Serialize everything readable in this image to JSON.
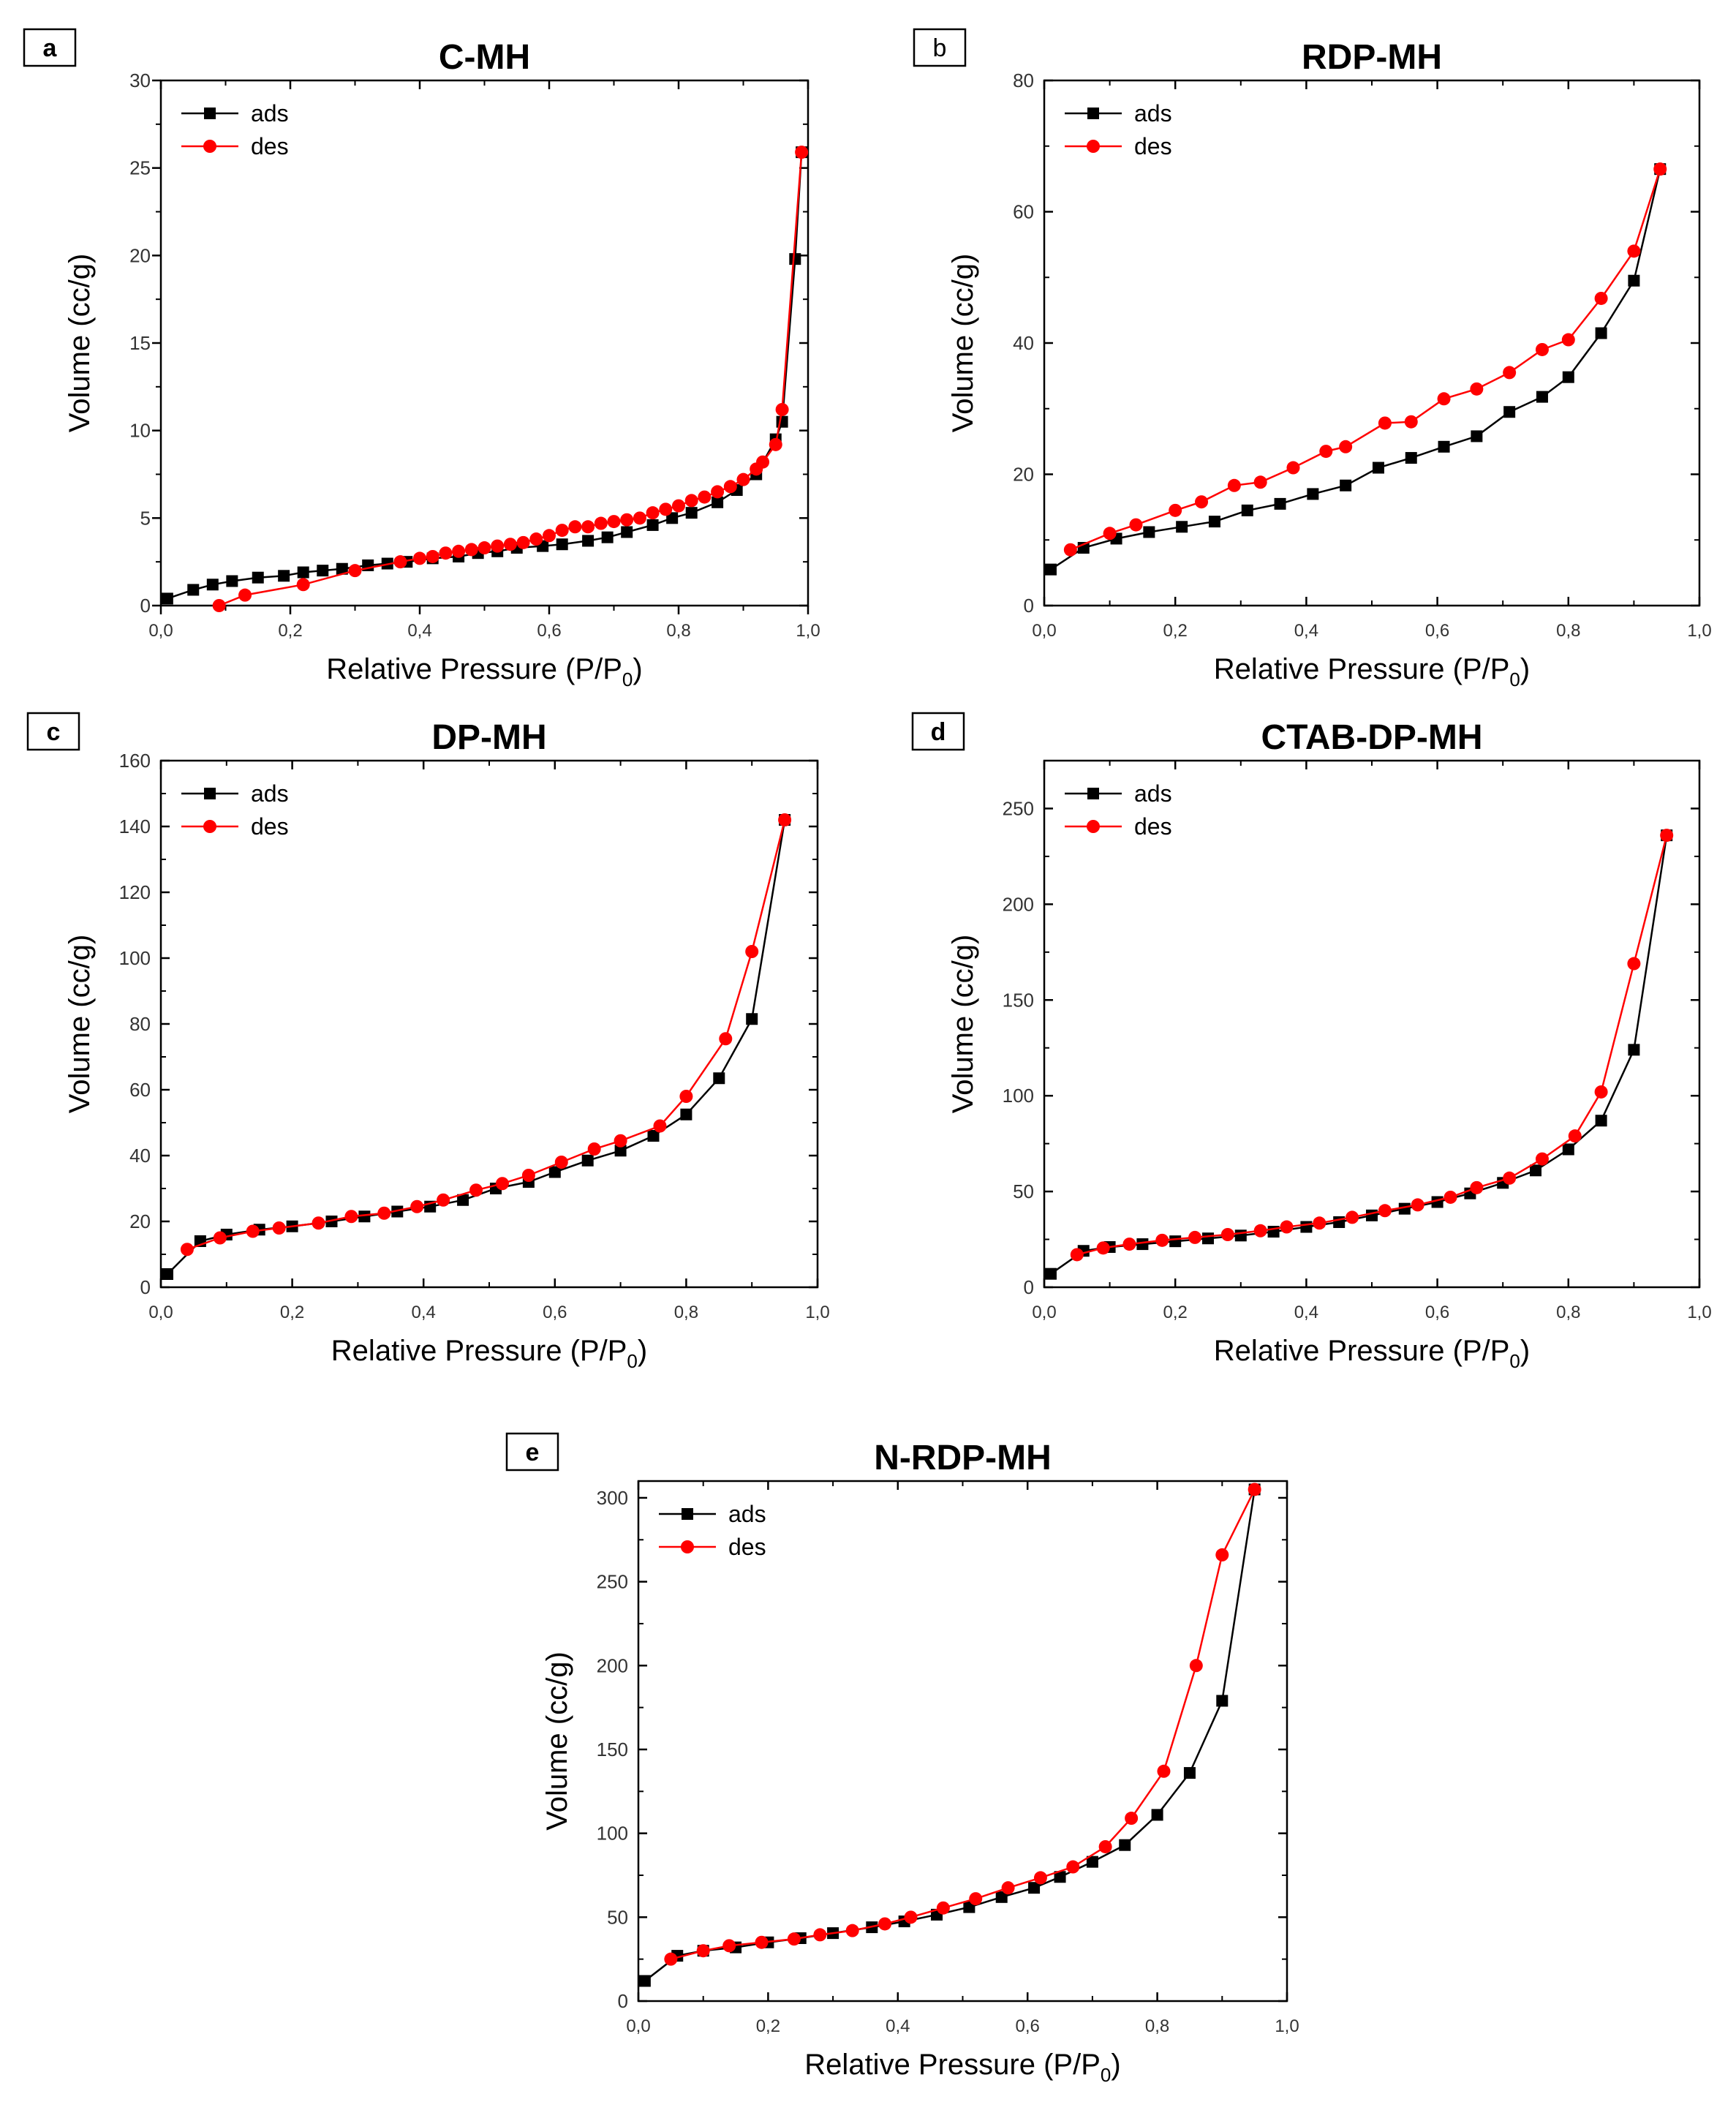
{
  "figure": {
    "background": "#ffffff"
  },
  "colors": {
    "ads": "#000000",
    "des": "#ff0000",
    "axis": "#000000"
  },
  "chart_data": [
    {
      "id": "a",
      "type": "line",
      "panel_label": "a",
      "title": "C-MH",
      "xlabel": "Relative Pressure (P/P",
      "xlabel_sub": "0",
      "xlabel_end": ")",
      "ylabel": "Volume (cc/g)",
      "xlim": [
        0,
        1.0
      ],
      "ylim": [
        0,
        30
      ],
      "xticks": [
        0,
        0.2,
        0.4,
        0.6,
        0.8,
        1.0
      ],
      "xtick_labels": [
        "0,0",
        "0,2",
        "0,4",
        "0,6",
        "0,8",
        "1,0"
      ],
      "yticks": [
        0,
        5,
        10,
        15,
        20,
        25,
        30
      ],
      "ytick_labels": [
        "0",
        "5",
        "10",
        "15",
        "20",
        "25",
        "30"
      ],
      "legend": {
        "position": "top-left",
        "entries": [
          "ads",
          "des"
        ]
      },
      "series": [
        {
          "name": "ads",
          "marker": "square",
          "x": [
            0.01,
            0.05,
            0.08,
            0.11,
            0.15,
            0.19,
            0.22,
            0.25,
            0.28,
            0.32,
            0.35,
            0.38,
            0.42,
            0.46,
            0.49,
            0.52,
            0.55,
            0.59,
            0.62,
            0.66,
            0.69,
            0.72,
            0.76,
            0.79,
            0.82,
            0.86,
            0.89,
            0.92,
            0.95,
            0.96,
            0.98,
            0.99
          ],
          "y": [
            0.4,
            0.9,
            1.2,
            1.4,
            1.6,
            1.7,
            1.9,
            2.0,
            2.1,
            2.3,
            2.4,
            2.5,
            2.7,
            2.8,
            3.0,
            3.1,
            3.3,
            3.4,
            3.5,
            3.7,
            3.9,
            4.2,
            4.6,
            5.0,
            5.3,
            5.9,
            6.6,
            7.5,
            9.5,
            10.5,
            19.8,
            25.9
          ]
        },
        {
          "name": "des",
          "marker": "circle",
          "x": [
            0.99,
            0.96,
            0.95,
            0.93,
            0.92,
            0.9,
            0.88,
            0.86,
            0.84,
            0.82,
            0.8,
            0.78,
            0.76,
            0.74,
            0.72,
            0.7,
            0.68,
            0.66,
            0.64,
            0.62,
            0.6,
            0.58,
            0.56,
            0.54,
            0.52,
            0.5,
            0.48,
            0.46,
            0.44,
            0.42,
            0.4,
            0.37,
            0.3,
            0.22,
            0.13,
            0.09
          ],
          "y": [
            25.9,
            11.2,
            9.2,
            8.2,
            7.8,
            7.2,
            6.8,
            6.5,
            6.2,
            6.0,
            5.7,
            5.5,
            5.3,
            5.0,
            4.9,
            4.8,
            4.7,
            4.5,
            4.5,
            4.3,
            4.0,
            3.8,
            3.6,
            3.5,
            3.4,
            3.3,
            3.2,
            3.1,
            3.0,
            2.8,
            2.7,
            2.5,
            2.0,
            1.2,
            0.6,
            0.0
          ]
        }
      ]
    },
    {
      "id": "b",
      "type": "line",
      "panel_label": "b",
      "title": "RDP-MH",
      "xlabel": "Relative Pressure (P/P",
      "xlabel_sub": "0",
      "xlabel_end": ")",
      "ylabel": "Volume (cc/g)",
      "xlim": [
        0,
        1.0
      ],
      "ylim": [
        0,
        80
      ],
      "xticks": [
        0,
        0.2,
        0.4,
        0.6,
        0.8,
        1.0
      ],
      "xtick_labels": [
        "0,0",
        "0,2",
        "0,4",
        "0,6",
        "0,8",
        "1,0"
      ],
      "yticks": [
        0,
        20,
        40,
        60,
        80
      ],
      "ytick_labels": [
        "0",
        "20",
        "40",
        "60",
        "80"
      ],
      "legend": {
        "position": "top-left",
        "entries": [
          "ads",
          "des"
        ]
      },
      "series": [
        {
          "name": "ads",
          "marker": "square",
          "x": [
            0.01,
            0.06,
            0.11,
            0.16,
            0.21,
            0.26,
            0.31,
            0.36,
            0.41,
            0.46,
            0.51,
            0.56,
            0.61,
            0.66,
            0.71,
            0.76,
            0.8,
            0.85,
            0.9,
            0.94
          ],
          "y": [
            5.5,
            8.8,
            10.2,
            11.2,
            12.0,
            12.8,
            14.5,
            15.5,
            17.0,
            18.3,
            21.0,
            22.5,
            24.2,
            25.8,
            29.5,
            31.8,
            34.8,
            41.5,
            49.5,
            66.5
          ]
        },
        {
          "name": "des",
          "marker": "circle",
          "x": [
            0.94,
            0.9,
            0.85,
            0.8,
            0.76,
            0.71,
            0.66,
            0.61,
            0.56,
            0.52,
            0.46,
            0.43,
            0.38,
            0.33,
            0.29,
            0.24,
            0.2,
            0.14,
            0.1,
            0.04
          ],
          "y": [
            66.5,
            54.0,
            46.8,
            40.5,
            39.0,
            35.5,
            33.0,
            31.5,
            28.0,
            27.8,
            24.2,
            23.5,
            21.0,
            18.8,
            18.3,
            15.8,
            14.5,
            12.3,
            11.0,
            8.5
          ]
        }
      ]
    },
    {
      "id": "c",
      "type": "line",
      "panel_label": "c",
      "title": "DP-MH",
      "xlabel": "Relative Pressure (P/P",
      "xlabel_sub": "0",
      "xlabel_end": ")",
      "ylabel": "Volume (cc/g)",
      "xlim": [
        0,
        1.0
      ],
      "ylim": [
        0,
        160
      ],
      "xticks": [
        0,
        0.2,
        0.4,
        0.6,
        0.8,
        1.0
      ],
      "xtick_labels": [
        "0,0",
        "0,2",
        "0,4",
        "0,6",
        "0,8",
        "1,0"
      ],
      "yticks": [
        0,
        20,
        40,
        60,
        80,
        100,
        120,
        140,
        160
      ],
      "ytick_labels": [
        "0",
        "20",
        "40",
        "60",
        "80",
        "100",
        "120",
        "140",
        "160"
      ],
      "legend": {
        "position": "top-left",
        "entries": [
          "ads",
          "des"
        ]
      },
      "series": [
        {
          "name": "ads",
          "marker": "square",
          "x": [
            0.01,
            0.06,
            0.1,
            0.15,
            0.2,
            0.26,
            0.31,
            0.36,
            0.41,
            0.46,
            0.51,
            0.56,
            0.6,
            0.65,
            0.7,
            0.75,
            0.8,
            0.85,
            0.9,
            0.95
          ],
          "y": [
            4,
            14,
            16,
            17.5,
            18.5,
            20,
            21.5,
            23,
            24.5,
            26.5,
            30,
            32,
            35,
            38.5,
            41.5,
            46,
            52.5,
            63.5,
            81.5,
            142
          ]
        },
        {
          "name": "des",
          "marker": "circle",
          "x": [
            0.95,
            0.9,
            0.86,
            0.8,
            0.76,
            0.7,
            0.66,
            0.61,
            0.56,
            0.52,
            0.48,
            0.43,
            0.39,
            0.34,
            0.29,
            0.24,
            0.18,
            0.14,
            0.09,
            0.04
          ],
          "y": [
            142,
            102,
            75.5,
            58,
            49,
            44.5,
            42,
            38,
            34,
            31.5,
            29.5,
            26.5,
            24.5,
            22.5,
            21.5,
            19.5,
            18,
            17,
            15,
            11.5
          ]
        }
      ]
    },
    {
      "id": "d",
      "type": "line",
      "panel_label": "d",
      "title": "CTAB-DP-MH",
      "xlabel": "Relative Pressure (P/P",
      "xlabel_sub": "0",
      "xlabel_end": ")",
      "ylabel": "Volume (cc/g)",
      "xlim": [
        0,
        1.0
      ],
      "ylim": [
        0,
        275
      ],
      "xticks": [
        0,
        0.2,
        0.4,
        0.6,
        0.8,
        1.0
      ],
      "xtick_labels": [
        "0,0",
        "0,2",
        "0,4",
        "0,6",
        "0,8",
        "1,0"
      ],
      "yticks": [
        0,
        50,
        100,
        150,
        200,
        250
      ],
      "ytick_labels": [
        "0",
        "50",
        "100",
        "150",
        "200",
        "250"
      ],
      "legend": {
        "position": "top-left",
        "entries": [
          "ads",
          "des"
        ]
      },
      "series": [
        {
          "name": "ads",
          "marker": "square",
          "x": [
            0.01,
            0.06,
            0.1,
            0.15,
            0.2,
            0.25,
            0.3,
            0.35,
            0.4,
            0.45,
            0.5,
            0.55,
            0.6,
            0.65,
            0.7,
            0.75,
            0.8,
            0.85,
            0.9,
            0.95
          ],
          "y": [
            7,
            19,
            21,
            22.5,
            24,
            25.5,
            27,
            29,
            31.5,
            34,
            37.5,
            41,
            44.5,
            49,
            54.5,
            61,
            72,
            87,
            124,
            236
          ]
        },
        {
          "name": "des",
          "marker": "circle",
          "x": [
            0.95,
            0.9,
            0.85,
            0.81,
            0.76,
            0.71,
            0.66,
            0.62,
            0.57,
            0.52,
            0.47,
            0.42,
            0.37,
            0.33,
            0.28,
            0.23,
            0.18,
            0.13,
            0.09,
            0.05
          ],
          "y": [
            236,
            169,
            102,
            79,
            67,
            57,
            52,
            47,
            43,
            40,
            36.5,
            33.5,
            31.5,
            29.5,
            27.5,
            26,
            24.5,
            22.5,
            20.5,
            17
          ]
        }
      ]
    },
    {
      "id": "e",
      "type": "line",
      "panel_label": "e",
      "title": "N-RDP-MH",
      "xlabel": "Relative Pressure (P/P",
      "xlabel_sub": "0",
      "xlabel_end": ")",
      "ylabel": "Volume (cc/g)",
      "xlim": [
        0,
        1.0
      ],
      "ylim": [
        0,
        310
      ],
      "xticks": [
        0,
        0.2,
        0.4,
        0.6,
        0.8,
        1.0
      ],
      "xtick_labels": [
        "0,0",
        "0,2",
        "0,4",
        "0,6",
        "0,8",
        "1,0"
      ],
      "yticks": [
        0,
        50,
        100,
        150,
        200,
        250,
        300
      ],
      "ytick_labels": [
        "0",
        "50",
        "100",
        "150",
        "200",
        "250",
        "300"
      ],
      "legend": {
        "position": "top-left",
        "entries": [
          "ads",
          "des"
        ]
      },
      "series": [
        {
          "name": "ads",
          "marker": "square",
          "x": [
            0.01,
            0.06,
            0.1,
            0.15,
            0.2,
            0.25,
            0.3,
            0.36,
            0.41,
            0.46,
            0.51,
            0.56,
            0.61,
            0.65,
            0.7,
            0.75,
            0.8,
            0.85,
            0.9,
            0.95
          ],
          "y": [
            12,
            27,
            30,
            32,
            35,
            37.5,
            40.5,
            44,
            47.5,
            51.5,
            56,
            62,
            67.5,
            74,
            83,
            93,
            111,
            136,
            179,
            305
          ]
        },
        {
          "name": "des",
          "marker": "circle",
          "x": [
            0.95,
            0.9,
            0.86,
            0.81,
            0.76,
            0.72,
            0.67,
            0.62,
            0.57,
            0.52,
            0.47,
            0.42,
            0.38,
            0.33,
            0.28,
            0.24,
            0.19,
            0.14,
            0.1,
            0.05
          ],
          "y": [
            305,
            266,
            200,
            137,
            109,
            92,
            80,
            73.5,
            67.5,
            61,
            55.5,
            50,
            46,
            42,
            39.5,
            37,
            35,
            33,
            30,
            25
          ]
        }
      ]
    }
  ]
}
